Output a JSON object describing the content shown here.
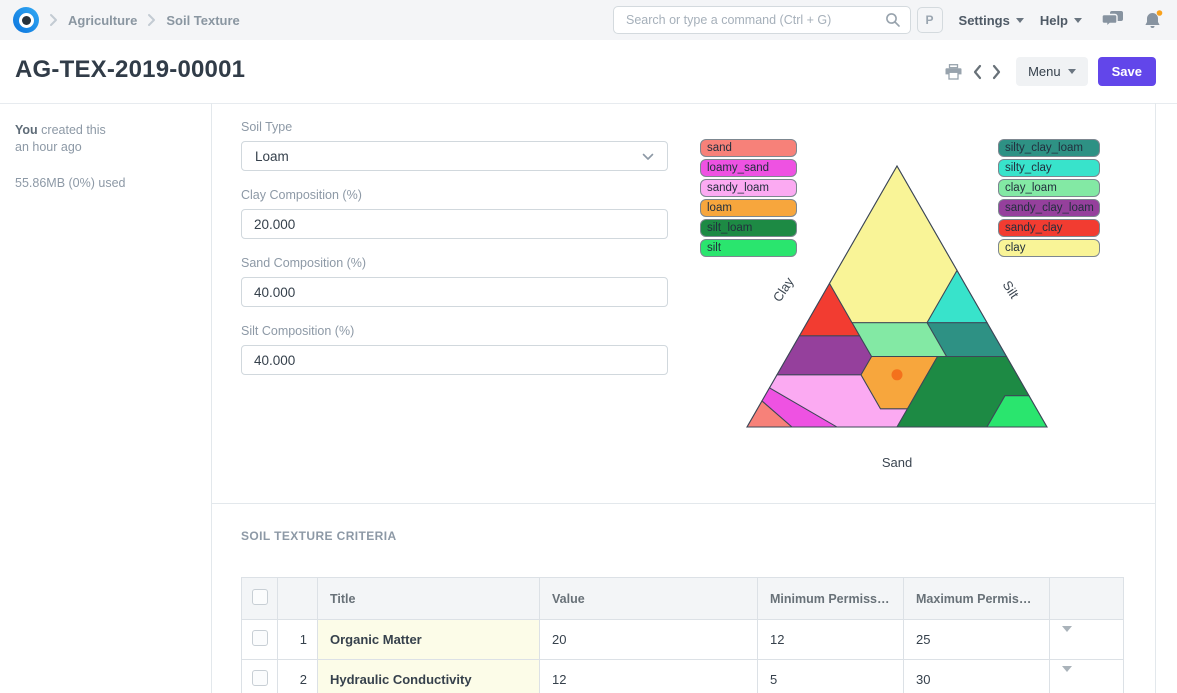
{
  "navbar": {
    "breadcrumbs": [
      {
        "label": "Agriculture"
      },
      {
        "label": "Soil Texture"
      }
    ],
    "search_placeholder": "Search or type a command (Ctrl + G)",
    "avatar_letter": "P",
    "settings_label": "Settings",
    "help_label": "Help"
  },
  "page_header": {
    "title": "AG-TEX-2019-00001",
    "menu_label": "Menu",
    "save_label": "Save"
  },
  "sidebar": {
    "created_bold": "You",
    "created_rest": "created this",
    "created_when": "an hour ago",
    "storage": "55.86MB (0%) used"
  },
  "form": {
    "soil_type": {
      "label": "Soil Type",
      "value": "Loam"
    },
    "clay": {
      "label": "Clay Composition (%)",
      "value": "20.000"
    },
    "sand": {
      "label": "Sand Composition (%)",
      "value": "40.000"
    },
    "silt": {
      "label": "Silt Composition (%)",
      "value": "40.000"
    }
  },
  "criteria_section": {
    "heading": "SOIL TEXTURE CRITERIA",
    "table": {
      "headers": {
        "title": "Title",
        "value": "Value",
        "min": "Minimum Permissib...",
        "max": "Maximum Permissi..."
      },
      "rows": [
        {
          "idx": "1",
          "title": "Organic Matter",
          "value": "20",
          "min": "12",
          "max": "25"
        },
        {
          "idx": "2",
          "title": "Hydraulic Conductivity",
          "value": "12",
          "min": "5",
          "max": "30"
        }
      ]
    }
  },
  "chart_data": {
    "type": "ternary",
    "axis_labels": {
      "left": "Clay",
      "right": "Silt",
      "bottom": "Sand"
    },
    "marker": {
      "clay": 20,
      "sand": 40,
      "silt": 40,
      "color": "#f4711c"
    },
    "stroke_color": "#3d4757",
    "legend_left": [
      "sand",
      "loamy_sand",
      "sandy_loam",
      "loam",
      "silt_loam",
      "silt"
    ],
    "legend_right": [
      "silty_clay_loam",
      "silty_clay",
      "clay_loam",
      "sandy_clay_loam",
      "sandy_clay",
      "clay"
    ],
    "regions": [
      {
        "name": "sand",
        "color": "#f78179",
        "points": [
          [
            0,
            100
          ],
          [
            10,
            90
          ],
          [
            0,
            85
          ]
        ]
      },
      {
        "name": "loamy_sand",
        "color": "#ee52e2",
        "points": [
          [
            0,
            85
          ],
          [
            10,
            90
          ],
          [
            15,
            85
          ],
          [
            0,
            70
          ]
        ]
      },
      {
        "name": "sandy_loam",
        "color": "#fbaaf2",
        "points": [
          [
            0,
            70
          ],
          [
            15,
            85
          ],
          [
            20,
            80
          ],
          [
            20,
            52
          ],
          [
            7,
            52
          ],
          [
            7,
            43
          ],
          [
            0,
            50
          ]
        ]
      },
      {
        "name": "loam",
        "color": "#f7a63d",
        "points": [
          [
            7,
            43
          ],
          [
            7,
            52
          ],
          [
            20,
            52
          ],
          [
            27,
            45
          ],
          [
            27,
            23
          ]
        ]
      },
      {
        "name": "silt_loam",
        "color": "#1d8a44",
        "points": [
          [
            0,
            50
          ],
          [
            7,
            43
          ],
          [
            27,
            23
          ],
          [
            27,
            0
          ],
          [
            12,
            0
          ],
          [
            12,
            8
          ],
          [
            0,
            20
          ]
        ]
      },
      {
        "name": "silt",
        "color": "#2ae56e",
        "points": [
          [
            0,
            20
          ],
          [
            12,
            8
          ],
          [
            12,
            0
          ],
          [
            0,
            0
          ]
        ]
      },
      {
        "name": "silty_clay_loam",
        "color": "#2e9184",
        "points": [
          [
            27,
            20
          ],
          [
            27,
            0
          ],
          [
            40,
            0
          ],
          [
            40,
            20
          ]
        ]
      },
      {
        "name": "silty_clay",
        "color": "#38e3cb",
        "points": [
          [
            40,
            20
          ],
          [
            40,
            0
          ],
          [
            60,
            0
          ]
        ]
      },
      {
        "name": "clay_loam",
        "color": "#83e9a4",
        "points": [
          [
            27,
            45
          ],
          [
            27,
            20
          ],
          [
            40,
            20
          ],
          [
            40,
            45
          ]
        ]
      },
      {
        "name": "sandy_clay_loam",
        "color": "#95409c",
        "points": [
          [
            20,
            80
          ],
          [
            35,
            65
          ],
          [
            35,
            45
          ],
          [
            27,
            45
          ],
          [
            20,
            52
          ]
        ]
      },
      {
        "name": "sandy_clay",
        "color": "#f23c31",
        "points": [
          [
            35,
            65
          ],
          [
            55,
            45
          ],
          [
            35,
            45
          ]
        ]
      },
      {
        "name": "clay",
        "color": "#f9f497",
        "points": [
          [
            40,
            45
          ],
          [
            55,
            45
          ],
          [
            100,
            0
          ],
          [
            60,
            0
          ],
          [
            40,
            20
          ]
        ]
      }
    ]
  }
}
